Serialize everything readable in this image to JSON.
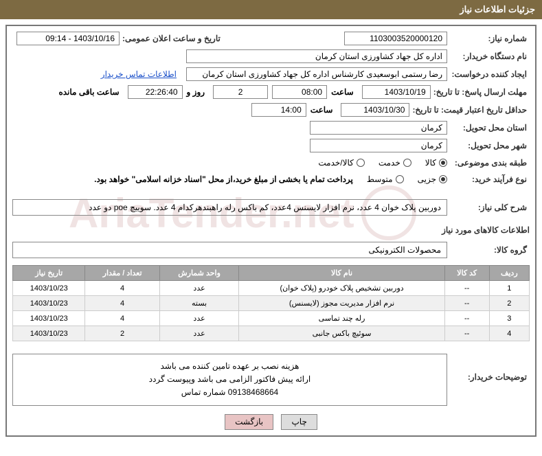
{
  "header": {
    "title": "جزئیات اطلاعات نیاز"
  },
  "needNumber": {
    "label": "شماره نیاز:",
    "value": "1103003520000120"
  },
  "announceDate": {
    "label": "تاریخ و ساعت اعلان عمومی:",
    "value": "1403/10/16 - 09:14"
  },
  "buyerOrg": {
    "label": "نام دستگاه خریدار:",
    "value": "اداره کل جهاد کشاورزی استان کرمان"
  },
  "requester": {
    "label": "ایجاد کننده درخواست:",
    "value": "رضا رستمی ابوسعیدی کارشناس اداره کل جهاد کشاورزی استان کرمان"
  },
  "contactLink": "اطلاعات تماس خریدار",
  "responseDeadline": {
    "label": "مهلت ارسال پاسخ: تا تاریخ:",
    "date": "1403/10/19",
    "timeLabel": "ساعت",
    "time": "08:00",
    "days": "2",
    "daysLabel": "روز و",
    "countdown": "22:26:40",
    "remainLabel": "ساعت باقی مانده"
  },
  "priceValidity": {
    "label": "حداقل تاریخ اعتبار قیمت: تا تاریخ:",
    "date": "1403/10/30",
    "timeLabel": "ساعت",
    "time": "14:00"
  },
  "deliveryProvince": {
    "label": "استان محل تحویل:",
    "value": "کرمان"
  },
  "deliveryCity": {
    "label": "شهر محل تحویل:",
    "value": "کرمان"
  },
  "classification": {
    "label": "طبقه بندی موضوعی:",
    "options": [
      "کالا",
      "خدمت",
      "کالا/خدمت"
    ],
    "selected": 0
  },
  "processType": {
    "label": "نوع فرآیند خرید:",
    "options": [
      "جزیی",
      "متوسط"
    ],
    "selected": 0,
    "note": "پرداخت تمام یا بخشی از مبلغ خرید،از محل \"اسناد خزانه اسلامی\" خواهد بود."
  },
  "generalDesc": {
    "label": "شرح کلی نیاز:",
    "value": "دوربین پلاک خوان 4 عدد، نرم افزار لایسنس 4عدد، کم باکس رله راهبندهرکدام 4 عدد. سوییچ poe دو عدد"
  },
  "itemsSection": "اطلاعات کالاهای مورد نیاز",
  "goodsGroup": {
    "label": "گروه کالا:",
    "value": "محصولات الکترونیکی"
  },
  "table": {
    "headers": [
      "ردیف",
      "کد کالا",
      "نام کالا",
      "واحد شمارش",
      "تعداد / مقدار",
      "تاریخ نیاز"
    ],
    "rows": [
      [
        "1",
        "--",
        "دوربین تشخیص پلاک خودرو (پلاک خوان)",
        "عدد",
        "4",
        "1403/10/23"
      ],
      [
        "2",
        "--",
        "نرم افزار مدیریت مجوز (لایسنس)",
        "بسته",
        "4",
        "1403/10/23"
      ],
      [
        "3",
        "--",
        "رله چند تماسی",
        "عدد",
        "4",
        "1403/10/23"
      ],
      [
        "4",
        "--",
        "سوئیچ باکس جانبی",
        "عدد",
        "2",
        "1403/10/23"
      ]
    ]
  },
  "buyerNotes": {
    "label": "توضیحات خریدار:",
    "line1": "هزینه نصب بر عهده تامین کننده می باشد",
    "line2": "ارائه پیش فاکتور الزامی می باشد وپیوست گردد",
    "line3": "09138468664 شماره تماس"
  },
  "buttons": {
    "print": "چاپ",
    "back": "بازگشت"
  },
  "colors": {
    "headerBg": "#7d6a42",
    "tableHeaderBg": "#a7a7a7",
    "linkColor": "#1a4fc9",
    "backBtnBg": "#e8c4c4"
  }
}
